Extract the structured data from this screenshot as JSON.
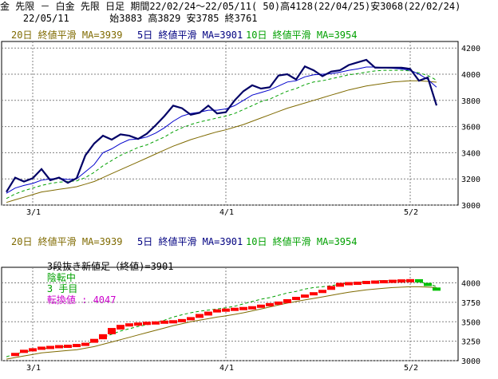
{
  "header": {
    "line1": "金 先限 － 白金 先限 日足 期間22/02/24～22/05/11( 50)高4128(22/04/25)安3068(22/02/24)",
    "line2": "    22/05/11       始3883 高3829 安3785 終3761"
  },
  "legend_top": [
    {
      "text": "20日 終値平滑 MA=3939",
      "color": "#7f6a00"
    },
    {
      "text": "5日 終値平滑 MA=3901",
      "color": "#000080"
    },
    {
      "text": "10日 終値平滑 MA=3954",
      "color": "#00a000"
    }
  ],
  "legend_bottom": [
    {
      "text": "20日 終値平滑 MA=3939",
      "color": "#7f6a00"
    },
    {
      "text": "5日 終値平滑 MA=3901",
      "color": "#000080"
    },
    {
      "text": "10日 終値平滑 MA=3954",
      "color": "#00a000"
    }
  ],
  "bottom_info": {
    "prefix": "3段抜き新値足（終値)=3901",
    "state": "陰転中",
    "count": "3 手目",
    "turn": "転換値 : 4047"
  },
  "colors": {
    "price": "#000066",
    "ma5": "#0000cc",
    "ma10": "#00a000",
    "ma20": "#7f6a00",
    "bar_up": "#ff0000",
    "bar_down": "#00c000",
    "grid": "#808080"
  },
  "chart_data": [
    {
      "type": "line",
      "x_ticks": [
        "3/1",
        "4/1",
        "5/2"
      ],
      "y_ticks": [
        "3000",
        "3200",
        "3400",
        "3600",
        "3800",
        "4000",
        "4200"
      ],
      "ylim": [
        3000,
        4250
      ],
      "series": [
        {
          "name": "close",
          "values": [
            3100,
            3210,
            3180,
            3205,
            3275,
            3190,
            3210,
            3170,
            3205,
            3380,
            3470,
            3530,
            3500,
            3540,
            3530,
            3505,
            3545,
            3610,
            3680,
            3760,
            3740,
            3690,
            3705,
            3760,
            3700,
            3710,
            3800,
            3870,
            3915,
            3890,
            3900,
            3990,
            4000,
            3960,
            4060,
            4030,
            3985,
            4020,
            4030,
            4070,
            4090,
            4110,
            4050,
            4050,
            4050,
            4050,
            4040,
            3950,
            3975,
            3761
          ]
        },
        {
          "name": "MA=3901",
          "values": [
            3090,
            3130,
            3150,
            3165,
            3190,
            3200,
            3205,
            3195,
            3200,
            3255,
            3310,
            3400,
            3430,
            3470,
            3500,
            3505,
            3520,
            3550,
            3590,
            3640,
            3680,
            3700,
            3710,
            3725,
            3725,
            3735,
            3760,
            3800,
            3840,
            3860,
            3880,
            3910,
            3940,
            3950,
            3980,
            3995,
            4000,
            4005,
            4015,
            4030,
            4040,
            4055,
            4055,
            4050,
            4045,
            4040,
            4030,
            4000,
            3960,
            3901
          ]
        },
        {
          "name": "MA=3954",
          "values": [
            3050,
            3085,
            3110,
            3130,
            3150,
            3165,
            3175,
            3180,
            3185,
            3210,
            3250,
            3300,
            3340,
            3380,
            3410,
            3440,
            3460,
            3490,
            3520,
            3560,
            3590,
            3615,
            3635,
            3650,
            3665,
            3680,
            3700,
            3730,
            3760,
            3790,
            3810,
            3840,
            3870,
            3890,
            3920,
            3940,
            3950,
            3965,
            3980,
            3995,
            4005,
            4015,
            4025,
            4030,
            4030,
            4030,
            4025,
            4010,
            3990,
            3954
          ]
        },
        {
          "name": "MA=3939",
          "values": [
            3020,
            3040,
            3060,
            3080,
            3100,
            3110,
            3120,
            3130,
            3140,
            3160,
            3180,
            3210,
            3240,
            3270,
            3300,
            3330,
            3360,
            3390,
            3420,
            3450,
            3475,
            3500,
            3520,
            3540,
            3560,
            3575,
            3595,
            3615,
            3640,
            3665,
            3690,
            3715,
            3740,
            3760,
            3780,
            3800,
            3820,
            3840,
            3860,
            3880,
            3895,
            3910,
            3920,
            3930,
            3940,
            3945,
            3950,
            3950,
            3945,
            3939
          ]
        }
      ]
    },
    {
      "type": "bar",
      "x_ticks": [
        "3/1",
        "4/1",
        "5/2"
      ],
      "y_ticks": [
        "3000",
        "3250",
        "3500",
        "3750",
        "4000"
      ],
      "ylim": [
        3000,
        4200
      ],
      "bars": [
        {
          "i": 1,
          "lo": 3065,
          "hi": 3100,
          "up": true
        },
        {
          "i": 2,
          "lo": 3110,
          "hi": 3140,
          "up": true
        },
        {
          "i": 3,
          "lo": 3130,
          "hi": 3160,
          "up": true
        },
        {
          "i": 4,
          "lo": 3155,
          "hi": 3180,
          "up": true
        },
        {
          "i": 5,
          "lo": 3165,
          "hi": 3190,
          "up": true
        },
        {
          "i": 6,
          "lo": 3170,
          "hi": 3200,
          "up": true
        },
        {
          "i": 7,
          "lo": 3175,
          "hi": 3205,
          "up": true
        },
        {
          "i": 8,
          "lo": 3180,
          "hi": 3215,
          "up": true
        },
        {
          "i": 9,
          "lo": 3200,
          "hi": 3230,
          "up": true
        },
        {
          "i": 10,
          "lo": 3230,
          "hi": 3280,
          "up": true
        },
        {
          "i": 11,
          "lo": 3275,
          "hi": 3340,
          "up": true
        },
        {
          "i": 12,
          "lo": 3340,
          "hi": 3420,
          "up": true
        },
        {
          "i": 13,
          "lo": 3400,
          "hi": 3460,
          "up": true
        },
        {
          "i": 14,
          "lo": 3440,
          "hi": 3480,
          "up": true
        },
        {
          "i": 15,
          "lo": 3460,
          "hi": 3490,
          "up": true
        },
        {
          "i": 16,
          "lo": 3470,
          "hi": 3500,
          "up": true
        },
        {
          "i": 17,
          "lo": 3475,
          "hi": 3505,
          "up": true
        },
        {
          "i": 18,
          "lo": 3480,
          "hi": 3515,
          "up": true
        },
        {
          "i": 19,
          "lo": 3490,
          "hi": 3520,
          "up": true
        },
        {
          "i": 20,
          "lo": 3500,
          "hi": 3535,
          "up": true
        },
        {
          "i": 21,
          "lo": 3520,
          "hi": 3560,
          "up": true
        },
        {
          "i": 22,
          "lo": 3550,
          "hi": 3600,
          "up": true
        },
        {
          "i": 23,
          "lo": 3580,
          "hi": 3630,
          "up": true
        },
        {
          "i": 24,
          "lo": 3620,
          "hi": 3660,
          "up": true
        },
        {
          "i": 25,
          "lo": 3640,
          "hi": 3670,
          "up": true
        },
        {
          "i": 26,
          "lo": 3650,
          "hi": 3680,
          "up": true
        },
        {
          "i": 27,
          "lo": 3660,
          "hi": 3690,
          "up": true
        },
        {
          "i": 28,
          "lo": 3670,
          "hi": 3700,
          "up": true
        },
        {
          "i": 29,
          "lo": 3690,
          "hi": 3720,
          "up": true
        },
        {
          "i": 30,
          "lo": 3700,
          "hi": 3740,
          "up": true
        },
        {
          "i": 31,
          "lo": 3720,
          "hi": 3760,
          "up": true
        },
        {
          "i": 32,
          "lo": 3740,
          "hi": 3790,
          "up": true
        },
        {
          "i": 33,
          "lo": 3780,
          "hi": 3820,
          "up": true
        },
        {
          "i": 34,
          "lo": 3810,
          "hi": 3850,
          "up": true
        },
        {
          "i": 35,
          "lo": 3840,
          "hi": 3880,
          "up": true
        },
        {
          "i": 36,
          "lo": 3870,
          "hi": 3910,
          "up": true
        },
        {
          "i": 37,
          "lo": 3910,
          "hi": 3960,
          "up": true
        },
        {
          "i": 38,
          "lo": 3950,
          "hi": 4000,
          "up": true
        },
        {
          "i": 39,
          "lo": 3980,
          "hi": 4010,
          "up": true
        },
        {
          "i": 40,
          "lo": 3990,
          "hi": 4015,
          "up": true
        },
        {
          "i": 41,
          "lo": 4000,
          "hi": 4025,
          "up": true
        },
        {
          "i": 42,
          "lo": 4005,
          "hi": 4030,
          "up": true
        },
        {
          "i": 43,
          "lo": 4010,
          "hi": 4035,
          "up": true
        },
        {
          "i": 44,
          "lo": 4020,
          "hi": 4040,
          "up": true
        },
        {
          "i": 45,
          "lo": 4025,
          "hi": 4045,
          "up": true
        },
        {
          "i": 46,
          "lo": 4030,
          "hi": 4048,
          "up": true
        },
        {
          "i": 47,
          "lo": 4020,
          "hi": 4047,
          "up": false
        },
        {
          "i": 48,
          "lo": 3960,
          "hi": 4000,
          "up": false
        },
        {
          "i": 49,
          "lo": 3901,
          "hi": 3940,
          "up": false
        }
      ],
      "series": [
        {
          "name": "MA=3954",
          "values": [
            3050,
            3085,
            3110,
            3130,
            3150,
            3165,
            3175,
            3180,
            3185,
            3210,
            3250,
            3300,
            3340,
            3380,
            3410,
            3440,
            3460,
            3490,
            3520,
            3560,
            3590,
            3615,
            3635,
            3650,
            3665,
            3680,
            3700,
            3730,
            3760,
            3790,
            3810,
            3840,
            3870,
            3890,
            3920,
            3940,
            3950,
            3965,
            3980,
            3995,
            4005,
            4015,
            4025,
            4030,
            4030,
            4030,
            4025,
            4010,
            3990,
            3954
          ]
        },
        {
          "name": "MA=3939",
          "values": [
            3020,
            3040,
            3060,
            3080,
            3100,
            3110,
            3120,
            3130,
            3140,
            3160,
            3180,
            3210,
            3240,
            3270,
            3300,
            3330,
            3360,
            3390,
            3420,
            3450,
            3475,
            3500,
            3520,
            3540,
            3560,
            3575,
            3595,
            3615,
            3640,
            3665,
            3690,
            3715,
            3740,
            3760,
            3780,
            3800,
            3820,
            3840,
            3860,
            3880,
            3895,
            3910,
            3920,
            3930,
            3940,
            3945,
            3950,
            3950,
            3945,
            3939
          ]
        }
      ]
    }
  ]
}
